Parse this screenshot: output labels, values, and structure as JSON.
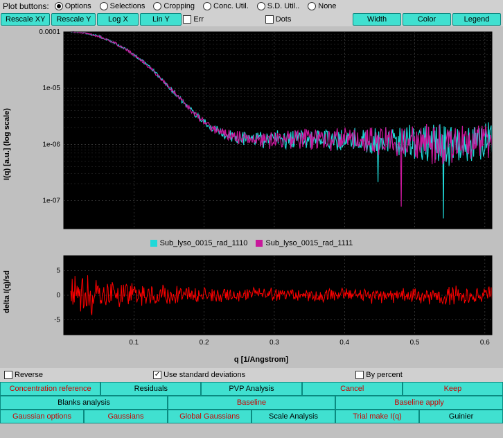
{
  "topbar": {
    "label": "Plot buttons:",
    "radios": [
      {
        "label": "Options",
        "checked": true
      },
      {
        "label": "Selections",
        "checked": false
      },
      {
        "label": "Cropping",
        "checked": false
      },
      {
        "label": "Conc. Util.",
        "checked": false
      },
      {
        "label": "S.D. Util..",
        "checked": false
      },
      {
        "label": "None",
        "checked": false
      }
    ]
  },
  "toolbar": {
    "rescale_xy": "Rescale XY",
    "rescale_y": "Rescale Y",
    "log_x": "Log X",
    "lin_y": "Lin Y",
    "err": "Err",
    "dots": "Dots",
    "width": "Width",
    "color": "Color",
    "legend": "Legend"
  },
  "main_chart": {
    "type": "line-log",
    "background_color": "#000000",
    "grid_color": "#666666",
    "grid_dash": "2,3",
    "ylabel": "I(q) [a.u.] (log scale)",
    "xlabel": "",
    "label_fontsize": 11,
    "tick_fontsize": 10,
    "tick_color": "#333333",
    "xlim": [
      0,
      0.61
    ],
    "ylim_exp": [
      -7.5,
      -4
    ],
    "yticks": [
      "0.0001",
      "1e-05",
      "1e-06",
      "1e-07"
    ],
    "ytick_exp": [
      -4,
      -5,
      -6,
      -7
    ],
    "xticks_visible": false,
    "series": [
      {
        "name": "Sub_lyso_0015_rad_1110",
        "color": "#20d8d8",
        "width": 1.2
      },
      {
        "name": "Sub_lyso_0015_rad_1111",
        "color": "#c8189b",
        "width": 1.2
      }
    ],
    "curve_q": [
      0.01,
      0.03,
      0.05,
      0.07,
      0.09,
      0.11,
      0.13,
      0.15,
      0.17,
      0.19,
      0.21,
      0.23,
      0.25,
      0.27,
      0.3,
      0.35,
      0.4,
      0.45,
      0.5,
      0.55,
      0.6
    ],
    "curve_logI": [
      -4.0,
      -4.02,
      -4.08,
      -4.18,
      -4.32,
      -4.5,
      -4.72,
      -4.98,
      -5.25,
      -5.5,
      -5.7,
      -5.82,
      -5.88,
      -5.9,
      -5.92,
      -5.9,
      -5.92,
      -5.95,
      -5.98,
      -6.0,
      -5.95
    ],
    "noise_amp_logI": [
      0.01,
      0.01,
      0.015,
      0.02,
      0.02,
      0.025,
      0.03,
      0.03,
      0.04,
      0.05,
      0.06,
      0.08,
      0.1,
      0.12,
      0.14,
      0.16,
      0.18,
      0.22,
      0.28,
      0.32,
      0.3
    ]
  },
  "legend": {
    "items": [
      {
        "label": "Sub_lyso_0015_rad_1110",
        "color": "#20d8d8"
      },
      {
        "label": "Sub_lyso_0015_rad_1111",
        "color": "#c8189b"
      }
    ]
  },
  "residual_chart": {
    "type": "line",
    "background_color": "#000000",
    "grid_color": "#666666",
    "ylabel": "delta I(q)/sd",
    "xlabel": "q [1/Angstrom]",
    "label_fontsize": 11,
    "tick_fontsize": 10,
    "xlim": [
      0,
      0.61
    ],
    "ylim": [
      -8,
      8
    ],
    "yticks": [
      -5,
      0,
      5
    ],
    "xticks": [
      0.1,
      0.2,
      0.3,
      0.4,
      0.5,
      0.6
    ],
    "color": "#ff0000",
    "width": 1,
    "noise_amp": [
      4.0,
      3.5,
      3.0,
      2.5,
      2.2,
      2.0,
      1.8,
      1.6,
      1.5,
      1.4,
      1.3,
      1.2,
      1.2,
      1.2,
      1.2,
      1.3,
      1.3,
      1.4,
      1.5,
      1.5,
      1.5
    ]
  },
  "bottom_opts": {
    "reverse": {
      "label": "Reverse",
      "checked": false
    },
    "use_sd": {
      "label": "Use standard deviations",
      "checked": true
    },
    "by_percent": {
      "label": "By percent",
      "checked": false
    }
  },
  "button_rows": [
    [
      {
        "label": "Concentration reference",
        "red": true
      },
      {
        "label": "Residuals",
        "red": false
      },
      {
        "label": "PVP Analysis",
        "red": false
      },
      {
        "label": "Cancel",
        "red": true
      },
      {
        "label": "Keep",
        "red": true
      }
    ],
    [
      {
        "label": "Blanks analysis",
        "red": false
      },
      {
        "label": "Baseline",
        "red": true
      },
      {
        "label": "Baseline apply",
        "red": true
      }
    ],
    [
      {
        "label": "Gaussian options",
        "red": true
      },
      {
        "label": "Gaussians",
        "red": true
      },
      {
        "label": "Global Gaussians",
        "red": true
      },
      {
        "label": "Scale Analysis",
        "red": false
      },
      {
        "label": "Trial make I(q)",
        "red": true
      },
      {
        "label": "Guinier",
        "red": false
      }
    ]
  ],
  "colors": {
    "button_bg": "#40e0d0",
    "button_border": "#0a8a80",
    "panel_bg": "#c0c0c0",
    "red_text": "#cc0000"
  }
}
